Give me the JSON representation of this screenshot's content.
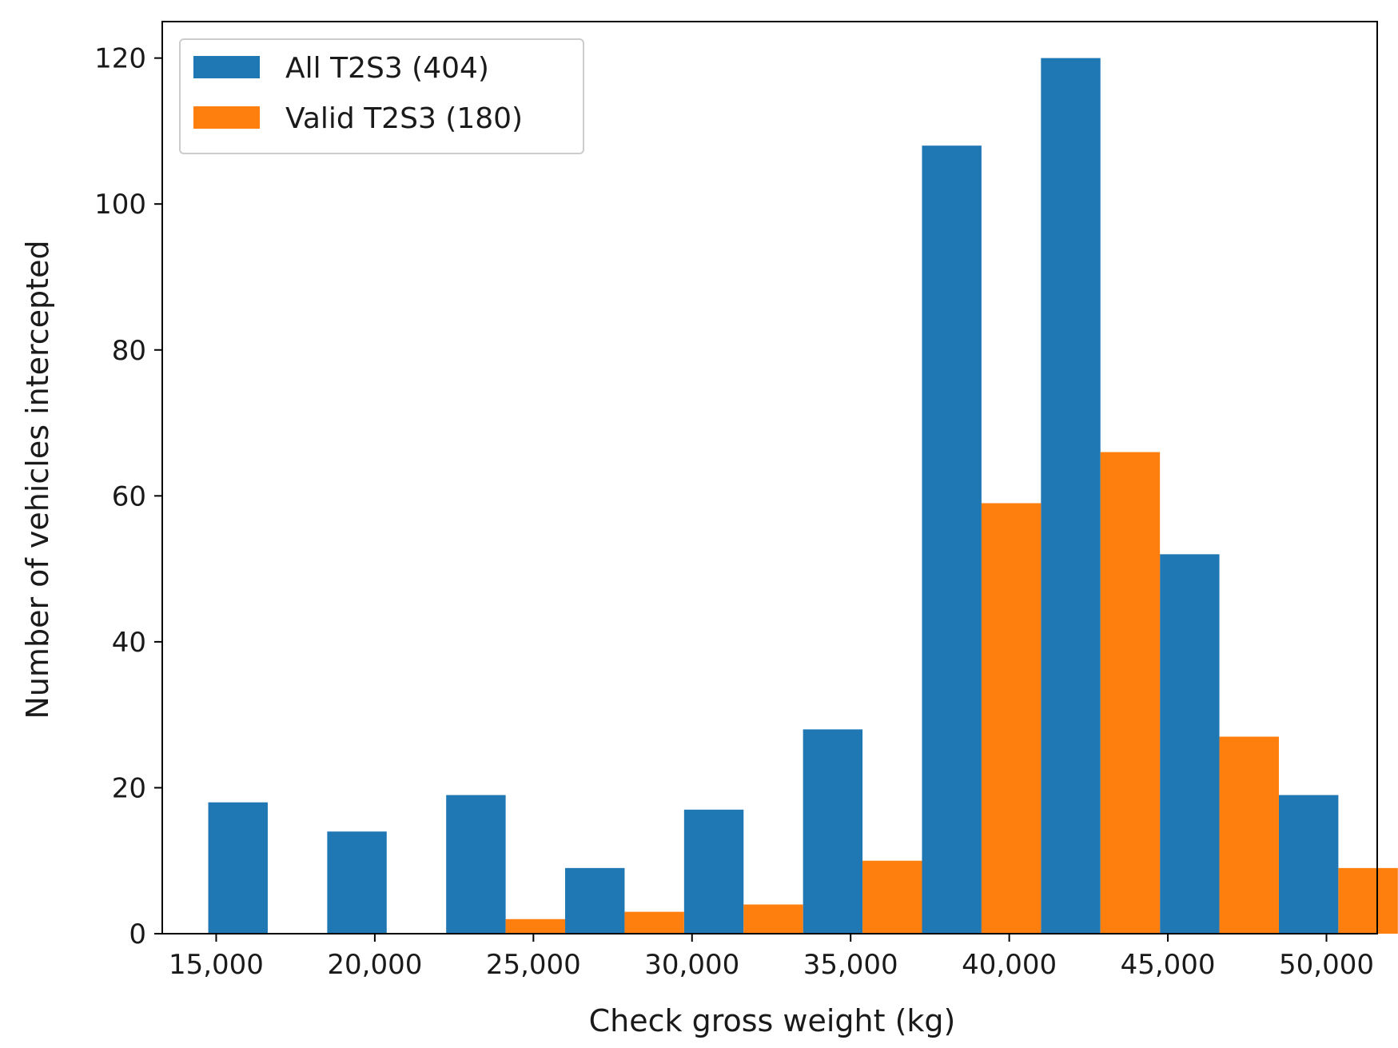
{
  "chart_data": {
    "type": "bar",
    "title": "",
    "xlabel": "Check gross weight (kg)",
    "ylabel": "Number of vehicles intercepted",
    "x_range": [
      13300,
      51600
    ],
    "ylim": [
      0,
      125
    ],
    "bin_width": 3750,
    "bins_start": [
      14750,
      18500,
      22250,
      26000,
      29750,
      33500,
      37250,
      41000,
      44750,
      48500
    ],
    "x_ticks": [
      15000,
      20000,
      25000,
      30000,
      35000,
      40000,
      45000,
      50000
    ],
    "x_tick_labels": [
      "15,000",
      "20,000",
      "25,000",
      "30,000",
      "35,000",
      "40,000",
      "45,000",
      "50,000"
    ],
    "y_ticks": [
      0,
      20,
      40,
      60,
      80,
      100,
      120
    ],
    "y_tick_labels": [
      "0",
      "20",
      "40",
      "60",
      "80",
      "100",
      "120"
    ],
    "grid": false,
    "legend_position": "top-left",
    "series": [
      {
        "name": "All T2S3 (404)",
        "color": "#1f77b4",
        "values": [
          18,
          14,
          19,
          9,
          17,
          28,
          108,
          120,
          52,
          19
        ]
      },
      {
        "name": "Valid T2S3 (180)",
        "color": "#ff7f0e",
        "values": [
          0,
          0,
          2,
          3,
          4,
          10,
          59,
          66,
          27,
          9
        ]
      }
    ]
  }
}
